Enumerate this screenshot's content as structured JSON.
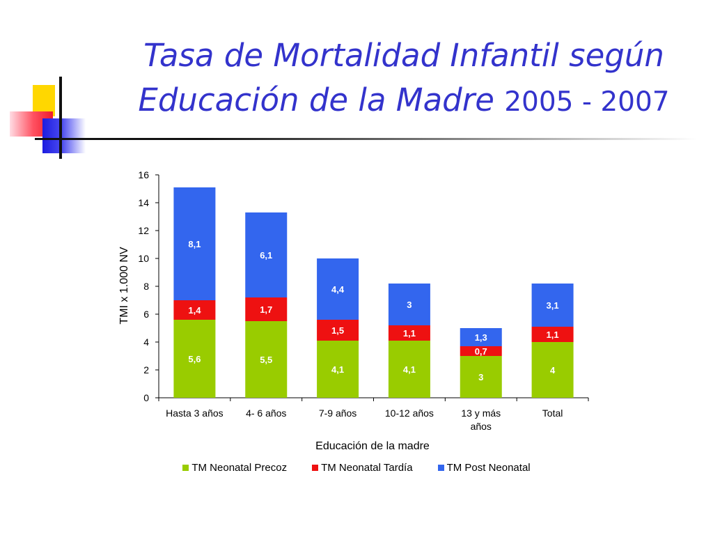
{
  "slide": {
    "title_line1": "Tasa de Mortalidad Infantil según",
    "title_line2_text": "Educación de la Madre",
    "title_line2_years": "2005 - 2007"
  },
  "colors": {
    "title": "#3333cc",
    "precoz": "#99cc00",
    "tardia": "#ee1111",
    "post": "#3366ee"
  },
  "chart_data": {
    "type": "bar",
    "stacked": true,
    "title": "",
    "xlabel": "Educación de la madre",
    "ylabel": "TMI x 1.000 NV",
    "ylim": [
      0,
      16
    ],
    "yticks": [
      "0",
      "2",
      "4",
      "6",
      "8",
      "10",
      "12",
      "14",
      "16"
    ],
    "categories": [
      "Hasta 3 años",
      "4- 6 años",
      "7-9 años",
      "10-12 años",
      "13 y más años",
      "Total"
    ],
    "series": [
      {
        "name": "TM Neonatal Precoz",
        "color": "#99cc00",
        "values": [
          5.6,
          5.5,
          4.1,
          4.1,
          3,
          4
        ],
        "labels": [
          "5,6",
          "5,5",
          "4,1",
          "4,1",
          "3",
          "4"
        ]
      },
      {
        "name": "TM Neonatal Tardía",
        "color": "#ee1111",
        "values": [
          1.4,
          1.7,
          1.5,
          1.1,
          0.7,
          1.1
        ],
        "labels": [
          "1,4",
          "1,7",
          "1,5",
          "1,1",
          "0,7",
          "1,1"
        ]
      },
      {
        "name": "TM Post Neonatal",
        "color": "#3366ee",
        "values": [
          8.1,
          6.1,
          4.4,
          3,
          1.3,
          3.1
        ],
        "labels": [
          "8,1",
          "6,1",
          "4,4",
          "3",
          "1,3",
          "3,1"
        ]
      }
    ],
    "legend_position": "bottom"
  }
}
